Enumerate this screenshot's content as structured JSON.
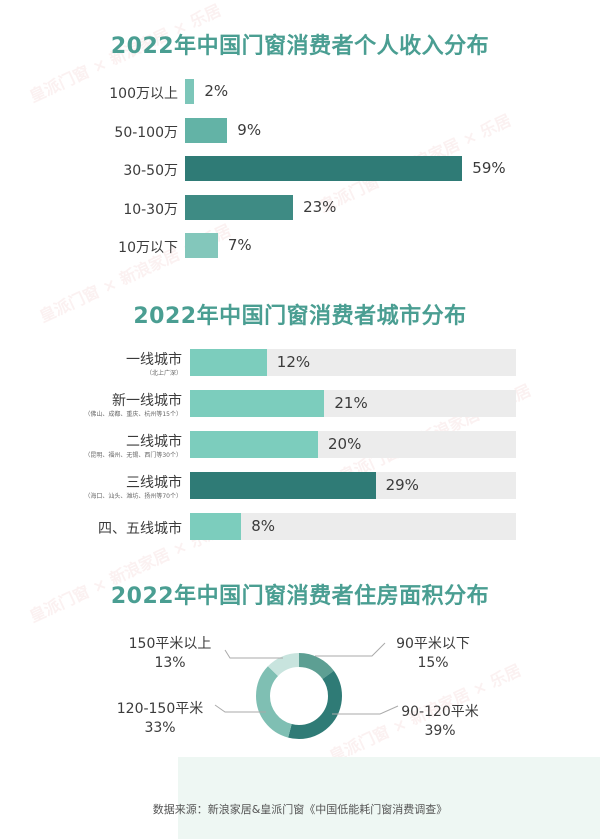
{
  "chart_data": [
    {
      "type": "bar",
      "title": "2022年中国门窗消费者个人收入分布",
      "categories": [
        "100万以上",
        "50-100万",
        "30-50万",
        "10-30万",
        "10万以下"
      ],
      "values": [
        2,
        9,
        59,
        23,
        7
      ],
      "value_labels": [
        "2%",
        "9%",
        "59%",
        "23%",
        "7%"
      ],
      "orientation": "horizontal",
      "colors": [
        "#7cc6b9",
        "#63b3a6",
        "#2f7b76",
        "#3e8b84",
        "#83c7bb"
      ]
    },
    {
      "type": "bar",
      "title": "2022年中国门窗消费者城市分布",
      "categories": [
        "一线城市",
        "新一线城市",
        "二线城市",
        "三线城市",
        "四、五线城市"
      ],
      "subtitles": [
        "（北上广深）",
        "（佛山、成都、重庆、杭州等15个）",
        "（昆明、福州、无锡、西门等30个）",
        "（海口、汕头、潍坊、扬州等70个）",
        ""
      ],
      "values": [
        12,
        21,
        20,
        29,
        8
      ],
      "value_labels": [
        "12%",
        "21%",
        "20%",
        "29%",
        "8%"
      ],
      "orientation": "horizontal",
      "colors": [
        "#7ccdbd",
        "#7ccdbd",
        "#7ccdbd",
        "#2f7b76",
        "#7ccdbd"
      ],
      "track_color": "#ececec"
    },
    {
      "type": "pie",
      "title": "2022年中国门窗消费者住房面积分布",
      "labels": [
        "90平米以下",
        "90-120平米",
        "120-150平米",
        "150平米以上"
      ],
      "values": [
        15,
        39,
        33,
        13
      ],
      "value_labels": [
        "15%",
        "39%",
        "33%",
        "13%"
      ],
      "colors": [
        "#5d9f93",
        "#2f7b76",
        "#7fbfb3",
        "#c8e4de"
      ]
    }
  ],
  "footer": {
    "source": "数据来源：新浪家居&皇派门窗《中国低能耗门窗消费调查》"
  },
  "watermark": {
    "text": "皇派门窗 × 新浪家居 × 乐居"
  }
}
